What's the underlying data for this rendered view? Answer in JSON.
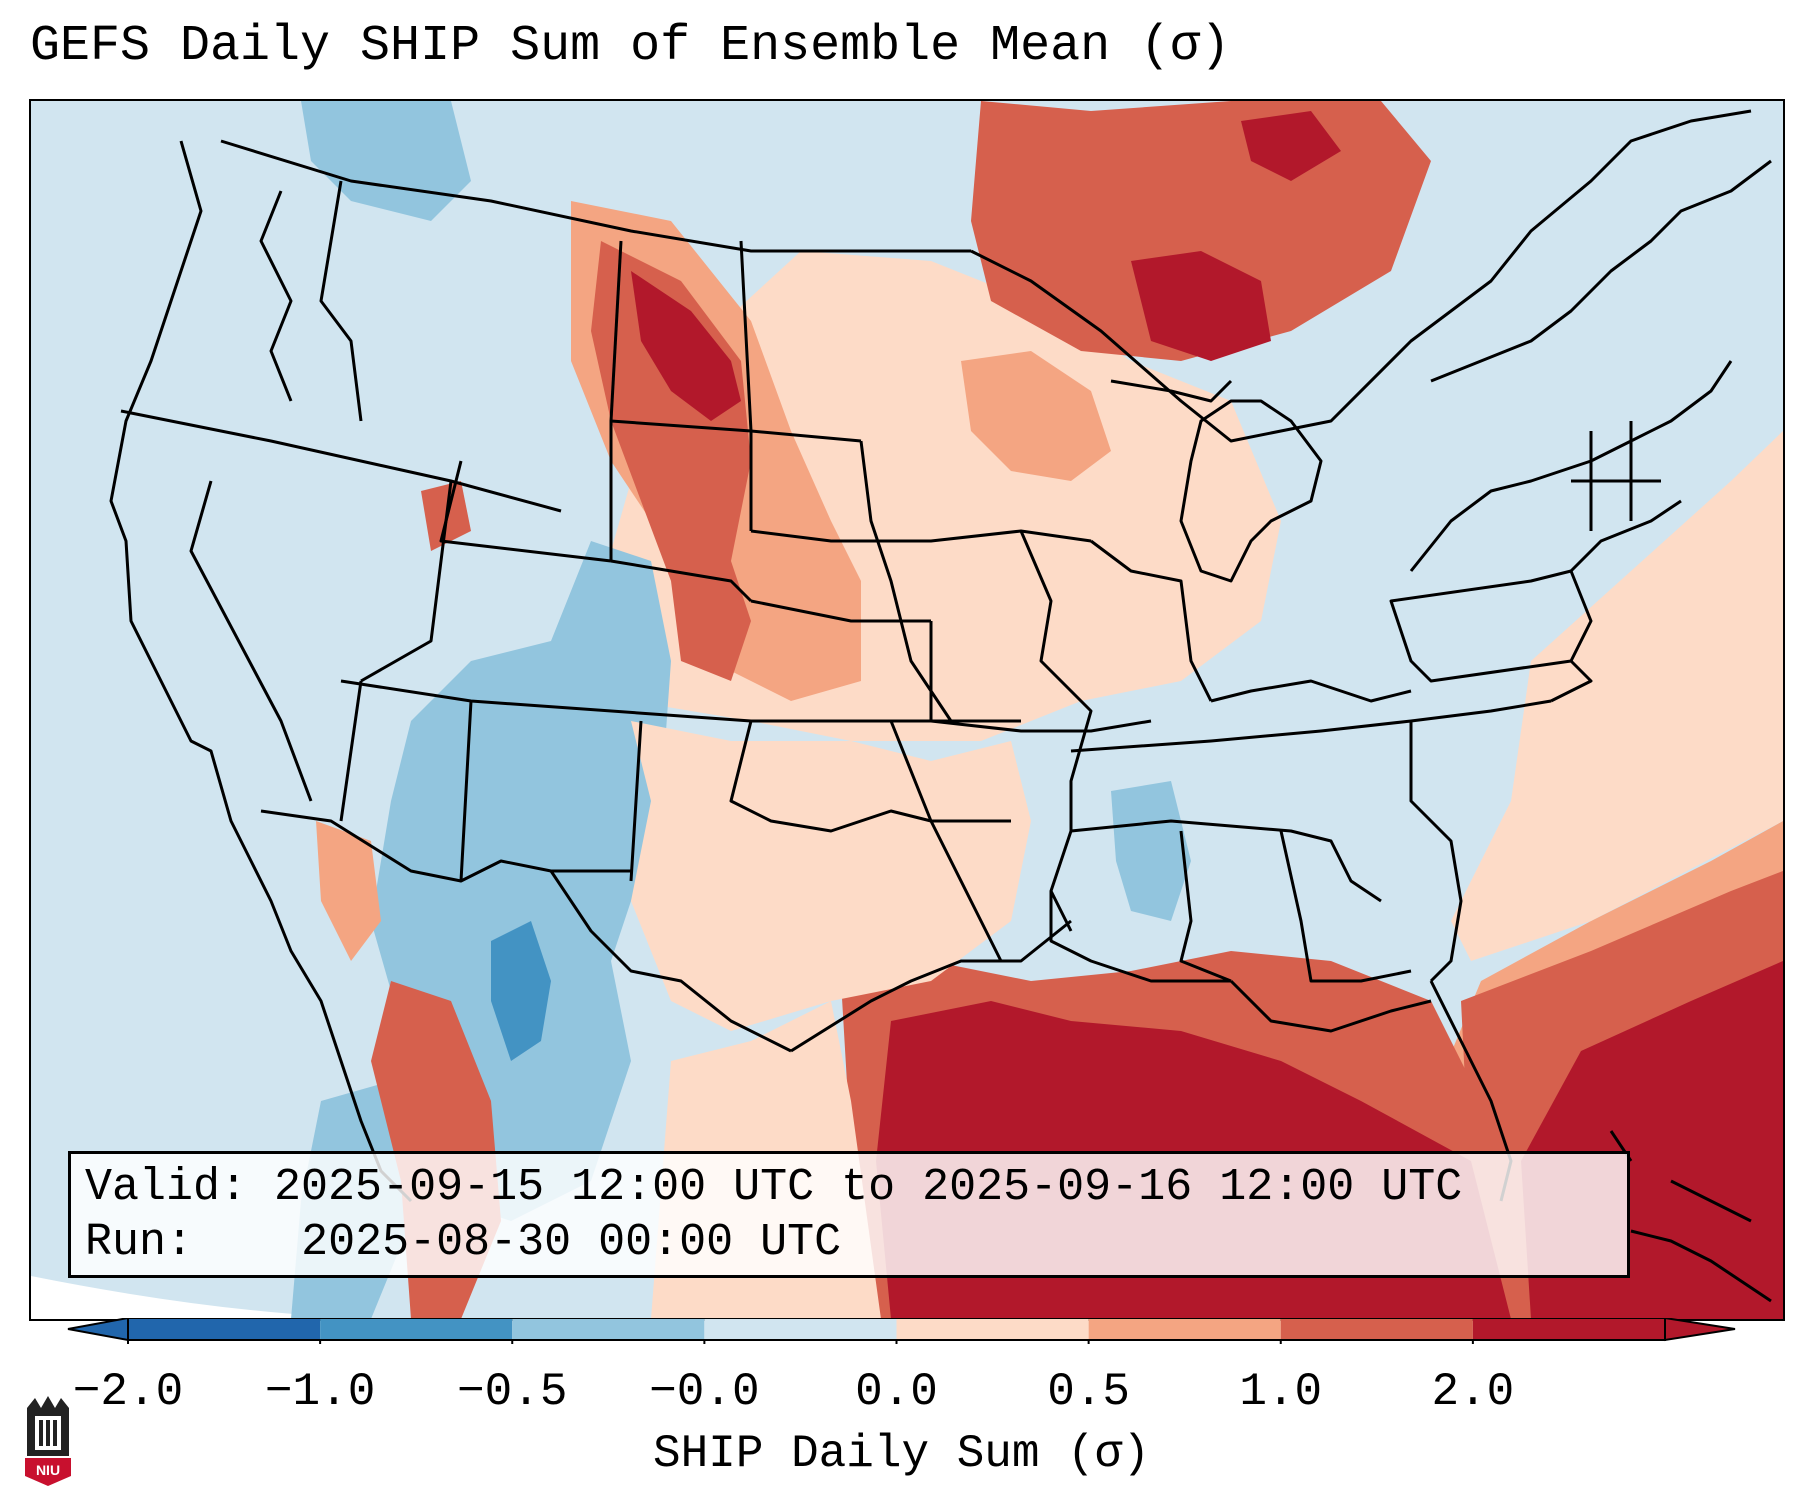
{
  "title": "GEFS Daily SHIP Sum of Ensemble Mean (σ)",
  "info": {
    "valid_label": "Valid:",
    "valid_value": "2025-09-15 12:00 UTC to 2025-09-16 12:00 UTC",
    "run_label": "Run:",
    "run_value": "2025-08-30 00:00 UTC"
  },
  "colorbar": {
    "label": "SHIP Daily Sum (σ)",
    "ticks": [
      "−2.0",
      "−1.0",
      "−0.5",
      "−0.0",
      "0.0",
      "0.5",
      "1.0",
      "2.0"
    ],
    "colors": [
      "#2166ac",
      "#4393c3",
      "#92c5de",
      "#d1e5f0",
      "#fddbc7",
      "#f4a582",
      "#d6604d",
      "#b2182b"
    ],
    "extend": "both"
  },
  "map": {
    "projection": "Lambert Conformal over Contiguous United States",
    "background_color": "#d1e5f0",
    "land_border_color": "#000000"
  },
  "logo": {
    "text": "NIU",
    "color": "#c8102e"
  }
}
